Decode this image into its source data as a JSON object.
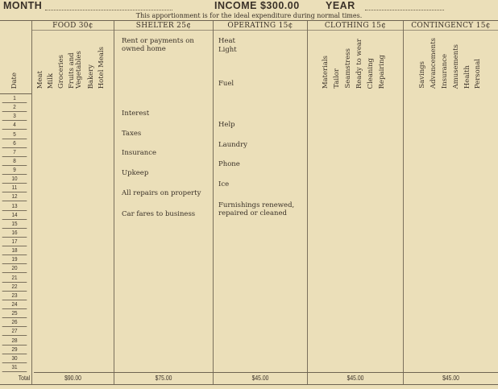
{
  "header": {
    "month_label": "MONTH",
    "income_label": "INCOME $300.00",
    "year_label": "YEAR",
    "note": "This apportionment is for the ideal expenditure during normal times."
  },
  "date_header": "Date",
  "dates": [
    "1",
    "2",
    "3",
    "4",
    "5",
    "6",
    "7",
    "8",
    "9",
    "10",
    "11",
    "12",
    "13",
    "14",
    "15",
    "16",
    "17",
    "18",
    "19",
    "20",
    "21",
    "22",
    "23",
    "24",
    "25",
    "26",
    "27",
    "28",
    "29",
    "30",
    "31"
  ],
  "total_label": "Total",
  "groups": {
    "food": {
      "title": "FOOD 30¢",
      "items": [
        "Meat",
        "Milk",
        "Groceries",
        "Fruits and Vegetables",
        "Bakery",
        "Hotel Meals"
      ],
      "total": "$90.00"
    },
    "shelter": {
      "title": "SHELTER 25¢",
      "items": [
        "Rent or payments on owned home",
        "Interest",
        "Taxes",
        "Insurance",
        "Upkeep",
        "All repairs on property",
        "Car fares to business"
      ],
      "total": "$75.00"
    },
    "operating": {
      "title": "OPERATING 15¢",
      "items": [
        "Heat",
        "Light",
        "Fuel",
        "Help",
        "Laundry",
        "Phone",
        "Ice",
        "Furnishings renewed, repaired or cleaned"
      ],
      "total": "$45.00"
    },
    "clothing": {
      "title": "CLOTHING 15¢",
      "items": [
        "Materials",
        "Tailor",
        "Seamstress",
        "Ready to wear",
        "Cleaning",
        "Repairing"
      ],
      "total": "$45.00"
    },
    "contingency": {
      "title": "CONTINGENCY 15¢",
      "items": [
        "Savings",
        "Advancements",
        "Insurance",
        "Amusements",
        "Health",
        "Personal"
      ],
      "total": "$45.00"
    }
  }
}
